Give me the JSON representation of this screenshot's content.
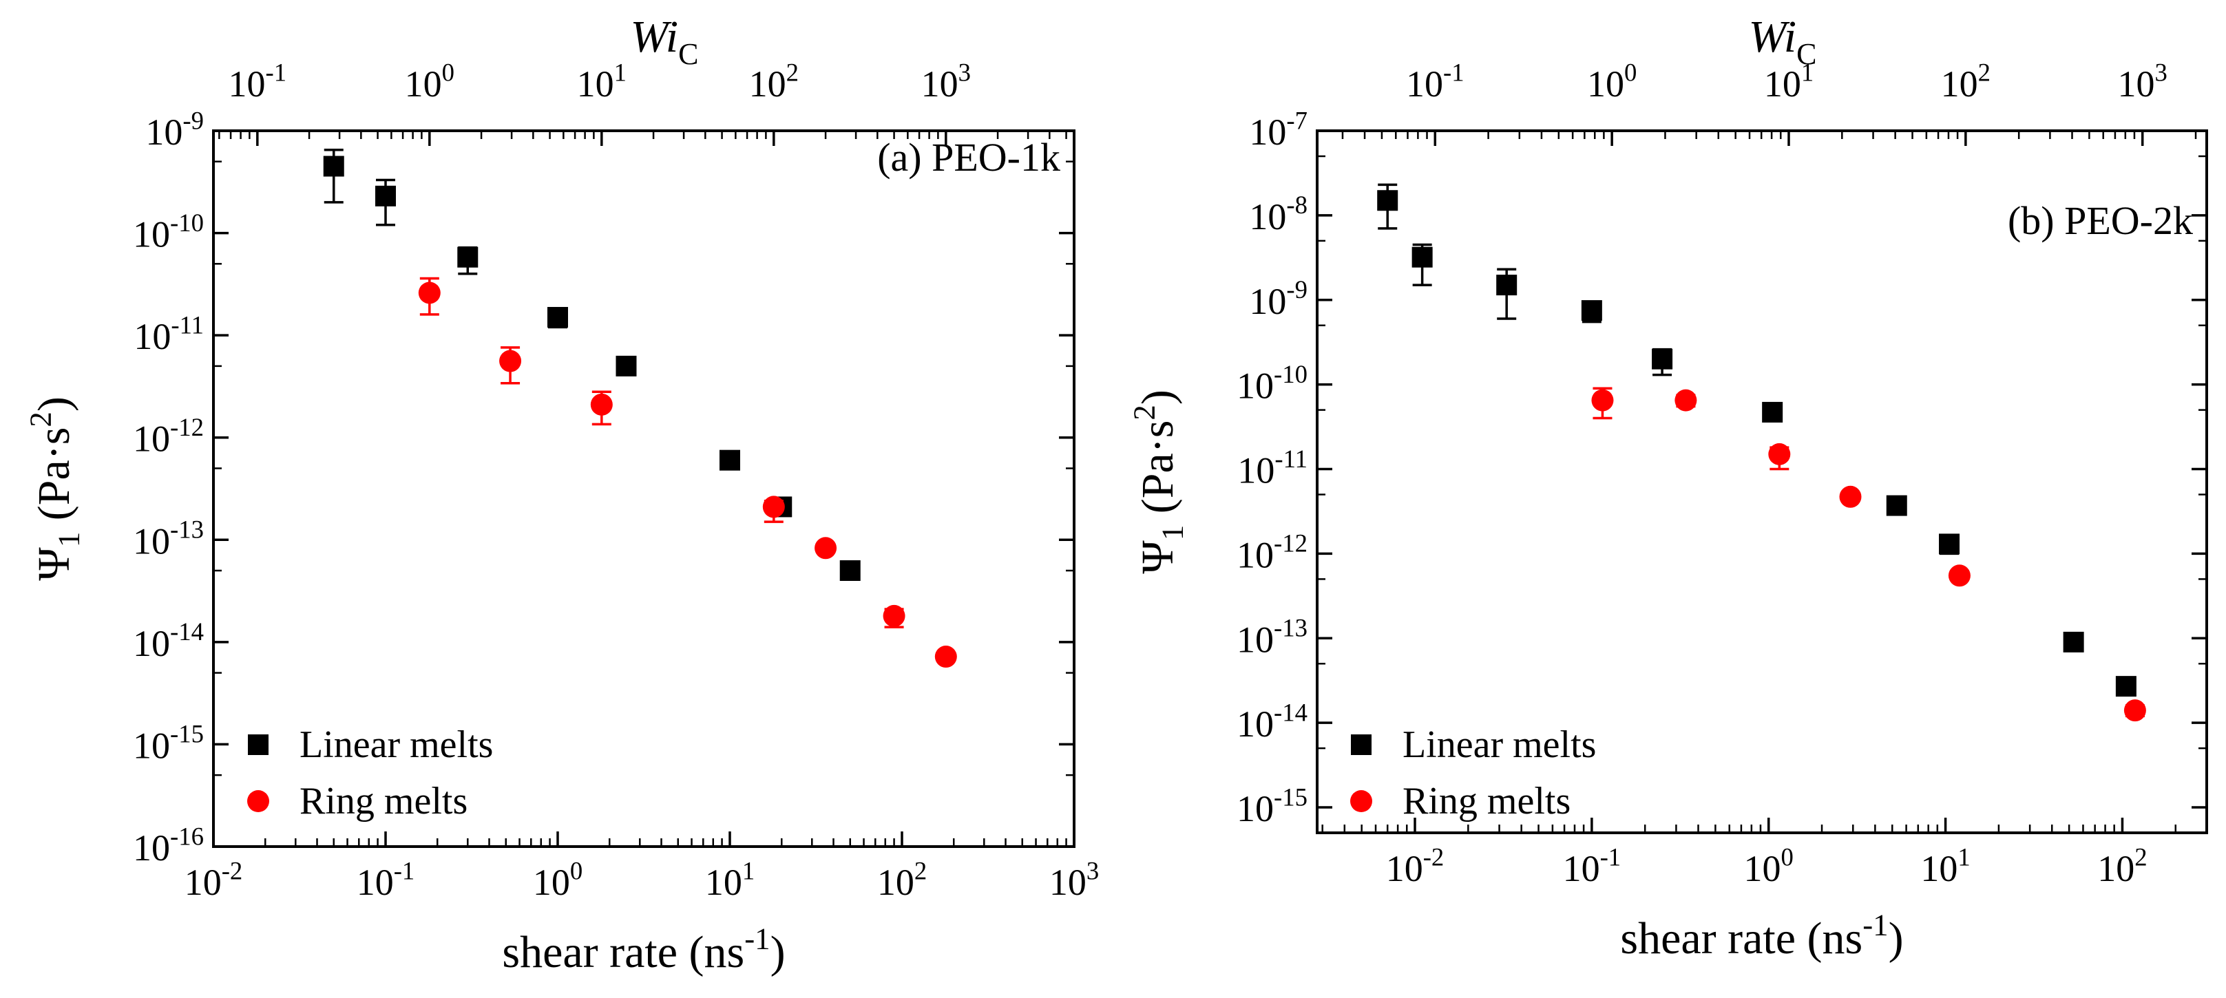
{
  "chart_data": [
    {
      "type": "scatter",
      "panel_label": "(a) PEO-1k",
      "xlabel": "shear rate (ns⁻¹)",
      "ylabel": "Ψ₁ (Pa·s²)",
      "top_axis_label": "Wi_C",
      "x_scale": "log",
      "y_scale": "log",
      "xlim": [
        0.01,
        1000
      ],
      "ylim": [
        1e-16,
        1e-09
      ],
      "x_ticks": [
        0.01,
        0.1,
        1,
        10,
        100,
        1000
      ],
      "y_ticks": [
        1e-16,
        1e-15,
        1e-14,
        1e-13,
        1e-12,
        1e-11,
        1e-10,
        1e-09
      ],
      "top_ticks": [
        0.1,
        1,
        10,
        100,
        1000
      ],
      "top_to_bottom_factor": 0.18,
      "legend_position": "bottom-left",
      "series": [
        {
          "name": "Linear melts",
          "marker": "square",
          "color": "#000000",
          "points": [
            {
              "x": 0.05,
              "y": 4.5e-10,
              "err_up": 6.5e-10,
              "err_down": 2e-10
            },
            {
              "x": 0.1,
              "y": 2.3e-10,
              "err_up": 3.3e-10,
              "err_down": 1.2e-10
            },
            {
              "x": 0.3,
              "y": 5.8e-11,
              "err_up": 7.2e-11,
              "err_down": 4e-11
            },
            {
              "x": 1.0,
              "y": 1.5e-11,
              "err_up": 1.8e-11,
              "err_down": 1.2e-11
            },
            {
              "x": 2.5,
              "y": 5e-12,
              "err_up": 5.6e-12,
              "err_down": 4.4e-12
            },
            {
              "x": 10,
              "y": 6e-13,
              "err_up": 6.6e-13,
              "err_down": 5.4e-13
            },
            {
              "x": 20,
              "y": 2.1e-13,
              "err_up": 2.3e-13,
              "err_down": 1.9e-13
            },
            {
              "x": 50,
              "y": 5e-14,
              "err_up": 5.5e-14,
              "err_down": 4.5e-14
            }
          ]
        },
        {
          "name": "Ring melts",
          "marker": "circle",
          "color": "#ff0000",
          "points": [
            {
              "x": 0.18,
              "y": 2.6e-11,
              "err_up": 3.6e-11,
              "err_down": 1.6e-11
            },
            {
              "x": 0.53,
              "y": 5.6e-12,
              "err_up": 7.6e-12,
              "err_down": 3.4e-12
            },
            {
              "x": 1.8,
              "y": 2.1e-12,
              "err_up": 2.8e-12,
              "err_down": 1.35e-12
            },
            {
              "x": 18,
              "y": 2.1e-13,
              "err_up": 2.4e-13,
              "err_down": 1.5e-13
            },
            {
              "x": 36,
              "y": 8.3e-14,
              "err_up": 9e-14,
              "err_down": 7.6e-14
            },
            {
              "x": 90,
              "y": 1.8e-14,
              "err_up": 2.1e-14,
              "err_down": 1.4e-14
            },
            {
              "x": 180,
              "y": 7.2e-15,
              "err_up": 7.8e-15,
              "err_down": 6.6e-15
            }
          ]
        }
      ]
    },
    {
      "type": "scatter",
      "panel_label": "(b) PEO-2k",
      "xlabel": "shear rate (ns⁻¹)",
      "ylabel": "Ψ₁ (Pa·s²)",
      "top_axis_label": "Wi_C",
      "x_scale": "log",
      "y_scale": "log",
      "xlim": [
        0.0028,
        300
      ],
      "ylim": [
        5e-16,
        1e-07
      ],
      "x_ticks": [
        0.01,
        0.1,
        1,
        10,
        100
      ],
      "y_ticks": [
        1e-15,
        1e-14,
        1e-13,
        1e-12,
        1e-11,
        1e-10,
        1e-09,
        1e-08,
        1e-07
      ],
      "top_ticks": [
        0.1,
        1,
        10,
        100,
        1000
      ],
      "top_to_bottom_factor": 0.13,
      "legend_position": "bottom-left",
      "series": [
        {
          "name": "Linear melts",
          "marker": "square",
          "color": "#000000",
          "points": [
            {
              "x": 0.007,
              "y": 1.5e-08,
              "err_up": 2.3e-08,
              "err_down": 7e-09
            },
            {
              "x": 0.011,
              "y": 3.2e-09,
              "err_up": 4.5e-09,
              "err_down": 1.5e-09
            },
            {
              "x": 0.033,
              "y": 1.5e-09,
              "err_up": 2.3e-09,
              "err_down": 6e-10
            },
            {
              "x": 0.1,
              "y": 7.5e-10,
              "err_up": 9.5e-10,
              "err_down": 5.5e-10
            },
            {
              "x": 0.25,
              "y": 2e-10,
              "err_up": 2.6e-10,
              "err_down": 1.3e-10
            },
            {
              "x": 1.05,
              "y": 4.7e-11,
              "err_up": 5.3e-11,
              "err_down": 4.1e-11
            },
            {
              "x": 5.3,
              "y": 3.7e-12,
              "err_up": 4.1e-12,
              "err_down": 3.3e-12
            },
            {
              "x": 10.5,
              "y": 1.3e-12,
              "err_up": 1.6e-12,
              "err_down": 1e-12
            },
            {
              "x": 53,
              "y": 9e-14,
              "err_up": 1e-13,
              "err_down": 8e-14
            },
            {
              "x": 105,
              "y": 2.7e-14,
              "err_up": 3e-14,
              "err_down": 2.4e-14
            }
          ]
        },
        {
          "name": "Ring melts",
          "marker": "circle",
          "color": "#ff0000",
          "points": [
            {
              "x": 0.115,
              "y": 6.5e-11,
              "err_up": 9e-11,
              "err_down": 4e-11
            },
            {
              "x": 0.34,
              "y": 6.5e-11,
              "err_up": 7.5e-11,
              "err_down": 5.5e-11
            },
            {
              "x": 1.15,
              "y": 1.5e-11,
              "err_up": 1.8e-11,
              "err_down": 1e-11
            },
            {
              "x": 2.9,
              "y": 4.7e-12,
              "err_up": 5.2e-12,
              "err_down": 4.2e-12
            },
            {
              "x": 12,
              "y": 5.5e-13,
              "err_up": 6.2e-13,
              "err_down": 4.9e-13
            },
            {
              "x": 118,
              "y": 1.4e-14,
              "err_up": 1.6e-14,
              "err_down": 1.2e-14
            }
          ]
        }
      ]
    }
  ]
}
